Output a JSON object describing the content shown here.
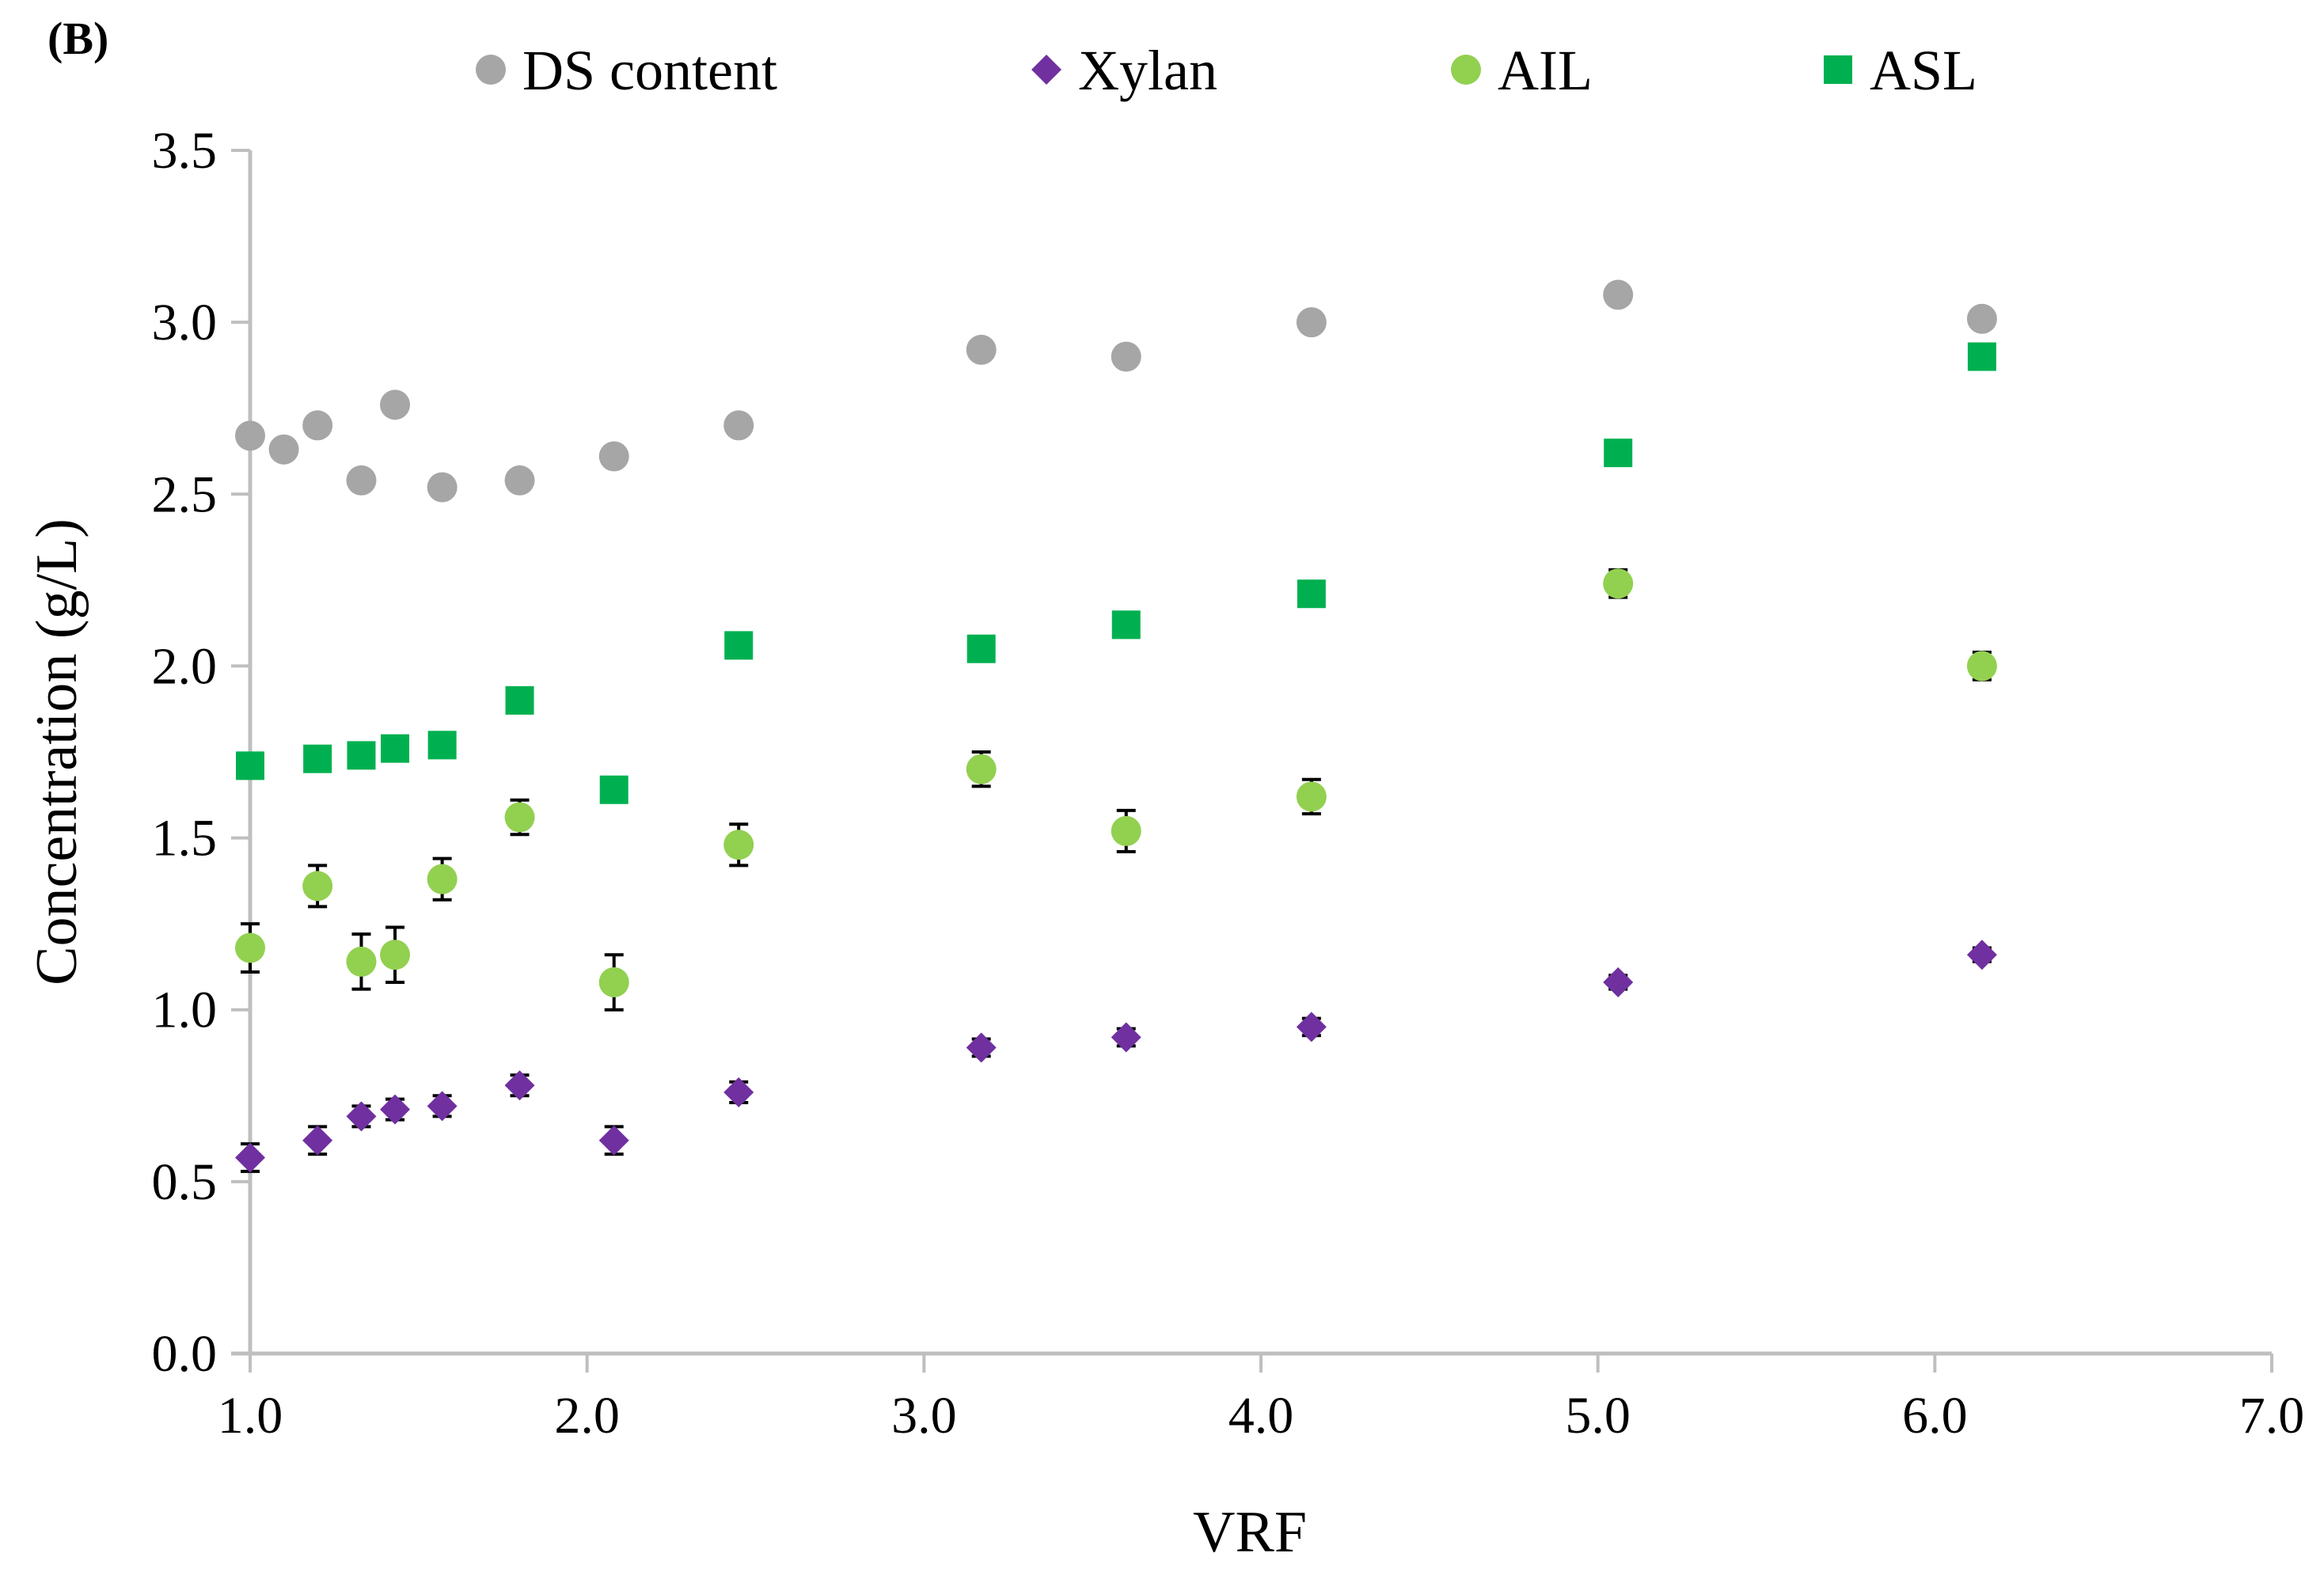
{
  "chart_data": {
    "type": "scatter",
    "panel_label": "(B)",
    "title": "",
    "xlabel": "VRF",
    "ylabel": "Concentration (g/L)",
    "xlim": [
      1.0,
      7.0
    ],
    "ylim": [
      0.0,
      3.5
    ],
    "x_ticks": [
      "1.0",
      "2.0",
      "3.0",
      "4.0",
      "5.0",
      "6.0",
      "7.0"
    ],
    "y_ticks": [
      "0.0",
      "0.5",
      "1.0",
      "1.5",
      "2.0",
      "2.5",
      "3.0",
      "3.5"
    ],
    "grid": false,
    "legend_position": "top",
    "error_bars": true,
    "series": [
      {
        "name": "DS content",
        "marker": "circle",
        "color": "#a6a6a6",
        "x": [
          1.0,
          1.1,
          1.2,
          1.33,
          1.43,
          1.57,
          1.8,
          2.08,
          2.45,
          3.17,
          3.6,
          4.15,
          5.06,
          6.14
        ],
        "y": [
          2.67,
          2.63,
          2.7,
          2.54,
          2.76,
          2.52,
          2.54,
          2.61,
          2.7,
          2.92,
          2.9,
          3.0,
          3.08,
          3.01
        ],
        "err": [
          0.015,
          0.01,
          0.015,
          0.02,
          0.02,
          0.015,
          0.02,
          0.02,
          0.015,
          0.02,
          0.02,
          0.015,
          0.02,
          0.02
        ]
      },
      {
        "name": "Xylan",
        "marker": "diamond",
        "color": "#7030a0",
        "x": [
          1.0,
          1.2,
          1.33,
          1.43,
          1.57,
          1.8,
          2.08,
          2.45,
          3.17,
          3.6,
          4.15,
          5.06,
          6.14
        ],
        "y": [
          0.57,
          0.62,
          0.69,
          0.71,
          0.72,
          0.78,
          0.62,
          0.76,
          0.89,
          0.92,
          0.95,
          1.08,
          1.16
        ],
        "err": [
          0.04,
          0.04,
          0.03,
          0.03,
          0.03,
          0.03,
          0.04,
          0.03,
          0.025,
          0.025,
          0.025,
          0.02,
          0.02
        ]
      },
      {
        "name": "AIL",
        "marker": "circle",
        "color": "#92d050",
        "x": [
          1.0,
          1.2,
          1.33,
          1.43,
          1.57,
          2.08,
          1.8,
          2.45,
          3.17,
          3.6,
          4.15,
          5.06,
          6.14
        ],
        "y": [
          1.18,
          1.36,
          1.14,
          1.16,
          1.38,
          1.08,
          1.56,
          1.48,
          1.7,
          1.52,
          1.62,
          2.24,
          2.0
        ],
        "err": [
          0.07,
          0.06,
          0.08,
          0.08,
          0.06,
          0.08,
          0.05,
          0.06,
          0.05,
          0.06,
          0.05,
          0.04,
          0.04
        ]
      },
      {
        "name": "ASL",
        "marker": "square",
        "color": "#00b050",
        "x": [
          1.0,
          1.2,
          1.33,
          1.43,
          1.57,
          1.8,
          2.08,
          2.45,
          3.17,
          3.6,
          4.15,
          5.06,
          6.14
        ],
        "y": [
          1.71,
          1.73,
          1.74,
          1.76,
          1.77,
          1.9,
          1.64,
          2.06,
          2.05,
          2.12,
          2.21,
          2.62,
          2.9
        ],
        "err": [
          0.02,
          0.02,
          0.02,
          0.02,
          0.02,
          0.02,
          0.02,
          0.02,
          0.02,
          0.02,
          0.02,
          0.02,
          0.02
        ]
      }
    ]
  }
}
